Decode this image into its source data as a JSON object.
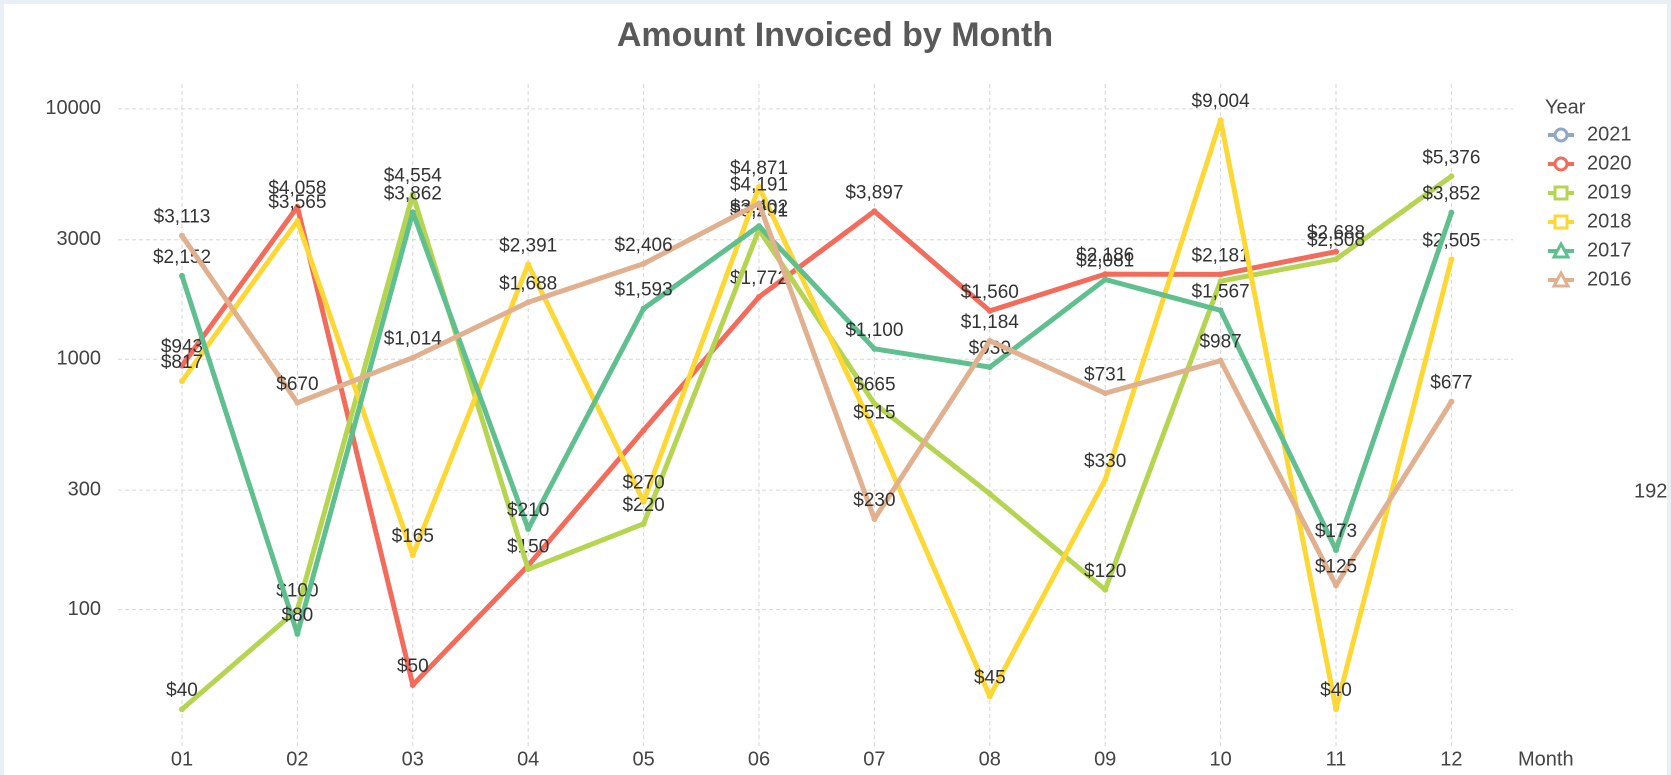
{
  "chart_data": {
    "type": "line",
    "title": "Amount Invoiced by Month",
    "x_label": "Month",
    "legend_title": "Year",
    "annotation": "192",
    "log_scale": true,
    "grid": true,
    "legend": "right",
    "categories": [
      "01",
      "02",
      "03",
      "04",
      "05",
      "06",
      "07",
      "08",
      "09",
      "10",
      "11",
      "12"
    ],
    "ylim": [
      28,
      12000
    ],
    "yticks": [
      100,
      300,
      1000,
      3000,
      10000
    ],
    "series": [
      {
        "name": "2021",
        "color": "#8fa8c8",
        "marker": "circle",
        "values": [
          null,
          null,
          null,
          null,
          null,
          null,
          null,
          null,
          null,
          null,
          null,
          null
        ],
        "value_labels": [
          null,
          null,
          null,
          null,
          null,
          null,
          null,
          null,
          null,
          null,
          null,
          null
        ]
      },
      {
        "name": "2020",
        "color": "#f26b5b",
        "marker": "circle",
        "values": [
          943,
          4058,
          50,
          150,
          520,
          1772,
          3897,
          1560,
          2186,
          2181,
          2688,
          null
        ],
        "value_labels": [
          "$943",
          "$4,058",
          "$50",
          "$150",
          null,
          "$1,772",
          "$3,897",
          "$1,560",
          "$2,186",
          "$2,181",
          "$2,688",
          null
        ]
      },
      {
        "name": "2019",
        "color": "#b5d44f",
        "marker": "square",
        "values": [
          40,
          100,
          4554,
          145,
          220,
          3291,
          665,
          290,
          120,
          2050,
          2508,
          5376
        ],
        "value_labels": [
          "$40",
          "$100",
          "$4,554",
          null,
          "$220",
          "$3,291",
          "$665",
          null,
          "$120",
          null,
          "$2,508",
          "$5,376"
        ]
      },
      {
        "name": "2018",
        "color": "#fdd835",
        "marker": "square",
        "values": [
          817,
          3565,
          165,
          2391,
          270,
          4871,
          515,
          45,
          330,
          9004,
          40,
          2505
        ],
        "value_labels": [
          "$817",
          "$3,565",
          "$165",
          "$2,391",
          "$270",
          "$4,871",
          "$515",
          "$45",
          "$330",
          "$9,004",
          "$40",
          "$2,505"
        ]
      },
      {
        "name": "2017",
        "color": "#5fbf8f",
        "marker": "triangle",
        "values": [
          2152,
          80,
          3862,
          210,
          1593,
          3402,
          1100,
          930,
          2081,
          1567,
          173,
          3852
        ],
        "value_labels": [
          "$2,152",
          "$80",
          "$3,862",
          "$210",
          "$1,593",
          "$3,402",
          "$1,100",
          "$930",
          "$2,081",
          "$1,567",
          "$173",
          "$3,852"
        ]
      },
      {
        "name": "2016",
        "color": "#e0b08f",
        "marker": "triangle",
        "values": [
          3113,
          670,
          1014,
          1688,
          2406,
          4191,
          230,
          1184,
          731,
          987,
          125,
          677
        ],
        "value_labels": [
          "$3,113",
          "$670",
          "$1,014",
          "$1,688",
          "$2,406",
          "$4,191",
          "$230",
          "$1,184",
          "$731",
          "$987",
          "$125",
          "$677"
        ]
      }
    ]
  }
}
